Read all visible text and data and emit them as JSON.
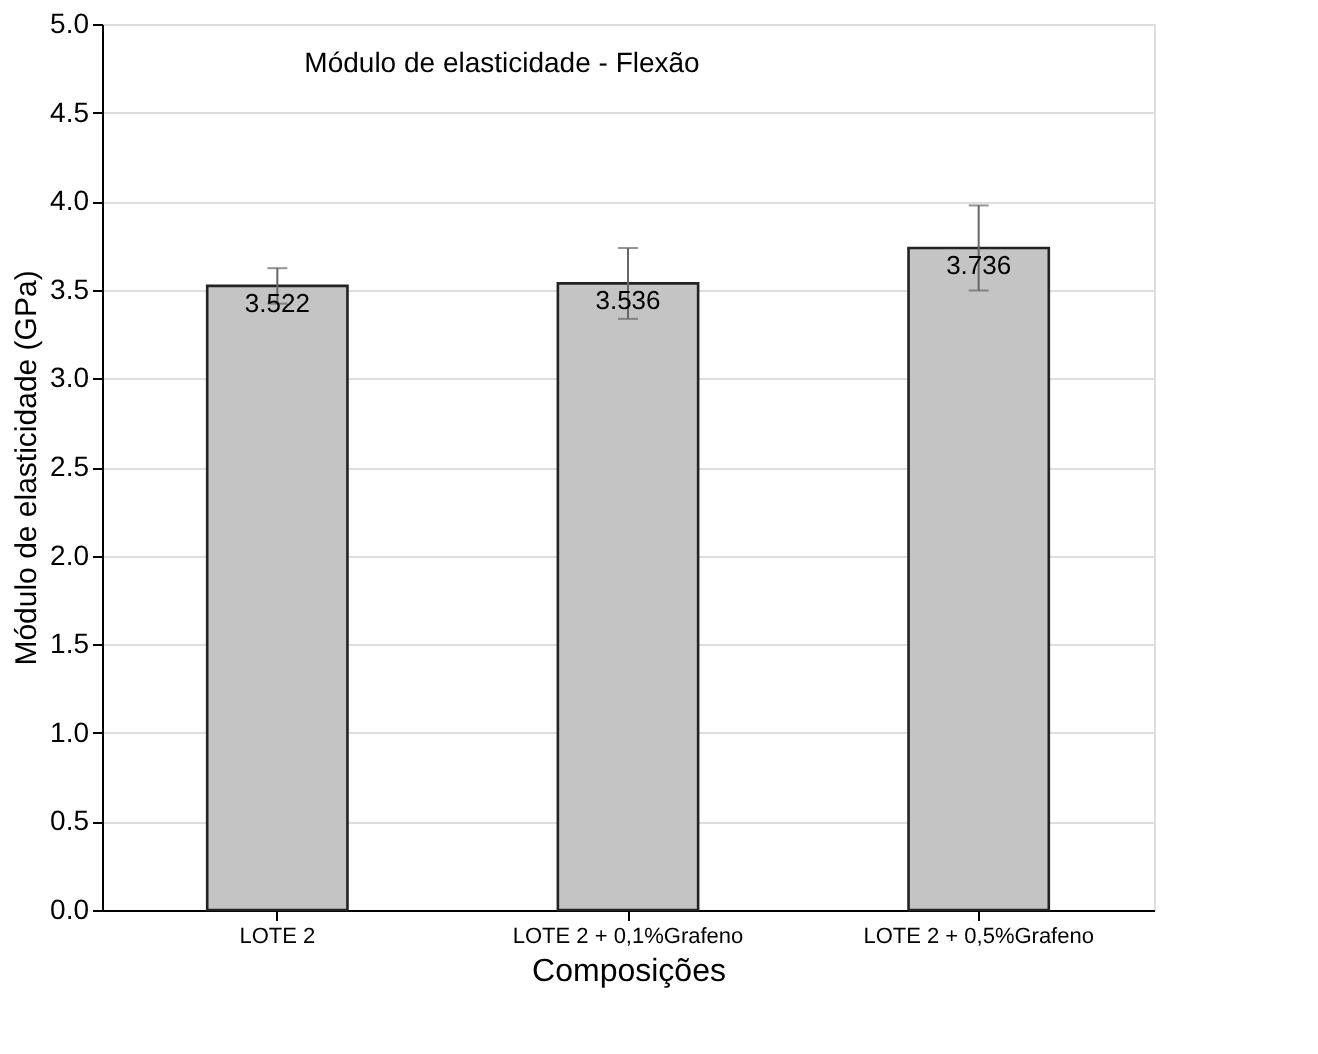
{
  "chart_data": {
    "type": "bar",
    "title": "Módulo de elasticidade - Flexão",
    "xlabel": "Composições",
    "ylabel": "Módulo de elasticidade (GPa)",
    "categories": [
      "LOTE 2",
      "LOTE 2 + 0,1%Grafeno",
      "LOTE 2 + 0,5%Grafeno"
    ],
    "values": [
      3.522,
      3.536,
      3.736
    ],
    "errors": [
      0.1,
      0.2,
      0.24
    ],
    "color": "#c4c4c4",
    "data_labels": true,
    "ylim": [
      0,
      5
    ],
    "yticks": [
      {
        "value": 0,
        "label": "0.0"
      },
      0.5,
      {
        "value": 1,
        "label": "1.0"
      },
      1.5,
      {
        "value": 2,
        "label": "2.0"
      },
      2.5,
      {
        "value": 3,
        "label": "3.0"
      },
      3.5,
      {
        "value": 4,
        "label": "4.0"
      },
      4.5,
      {
        "value": 5,
        "label": "5.0"
      }
    ],
    "grid": "y"
  }
}
